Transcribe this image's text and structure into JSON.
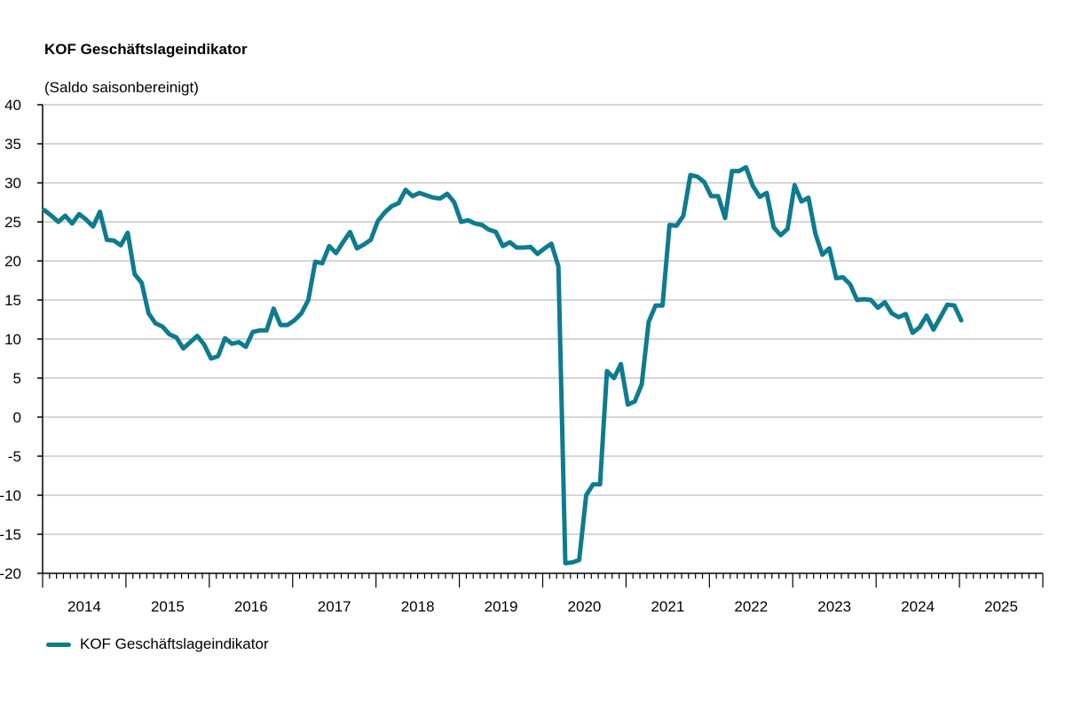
{
  "chart_data": {
    "type": "line",
    "title": "KOF Geschäftslageindikator",
    "subtitle": "(Saldo saisonbereinigt)",
    "xlabel": "",
    "ylabel": "",
    "ylim": [
      -20,
      40
    ],
    "yticks": [
      "40",
      "35",
      "30",
      "25",
      "20",
      "15",
      "10",
      "5",
      "0",
      "-5",
      "-10",
      "-15",
      "-20"
    ],
    "xticks": [
      "2014",
      "2015",
      "2016",
      "2017",
      "2018",
      "2019",
      "2020",
      "2021",
      "2022",
      "2023",
      "2024",
      "2025"
    ],
    "x_start": "2014-01",
    "x_frequency": "monthly",
    "grid": true,
    "legend_position": "bottom-left",
    "series": [
      {
        "name": "KOF Geschäftslageindikator",
        "color": "#0e7b8f",
        "values": [
          26.5,
          25.8,
          25.0,
          25.8,
          24.8,
          26.0,
          25.3,
          24.4,
          26.3,
          22.7,
          22.6,
          22.0,
          23.6,
          18.3,
          17.2,
          13.3,
          12.0,
          11.6,
          10.6,
          10.2,
          8.8,
          9.6,
          10.4,
          9.3,
          7.5,
          7.8,
          10.1,
          9.4,
          9.6,
          9.0,
          10.9,
          11.1,
          11.1,
          13.9,
          11.8,
          11.8,
          12.4,
          13.3,
          15.0,
          19.9,
          19.7,
          21.9,
          21.0,
          22.4,
          23.7,
          21.6,
          22.1,
          22.7,
          25.1,
          26.2,
          27.0,
          27.4,
          29.1,
          28.3,
          28.7,
          28.4,
          28.1,
          28.0,
          28.6,
          27.5,
          25.0,
          25.2,
          24.8,
          24.6,
          24.0,
          23.7,
          21.9,
          22.4,
          21.7,
          21.7,
          21.8,
          20.9,
          21.6,
          22.2,
          19.3,
          -18.7,
          -18.6,
          -18.3,
          -10.0,
          -8.6,
          -8.6,
          5.9,
          5.0,
          6.8,
          1.6,
          2.0,
          4.2,
          12.2,
          14.3,
          14.3,
          24.6,
          24.5,
          25.8,
          31.0,
          30.8,
          30.1,
          28.3,
          28.3,
          25.5,
          31.5,
          31.5,
          32.0,
          29.6,
          28.2,
          28.7,
          24.3,
          23.3,
          24.1,
          29.7,
          27.6,
          28.1,
          23.5,
          20.8,
          21.6,
          17.8,
          17.9,
          17.0,
          15.0,
          15.1,
          15.0,
          14.0,
          14.7,
          13.3,
          12.8,
          13.2,
          10.8,
          11.5,
          13.0,
          11.2,
          12.8,
          14.4,
          14.3,
          12.4
        ]
      }
    ]
  }
}
